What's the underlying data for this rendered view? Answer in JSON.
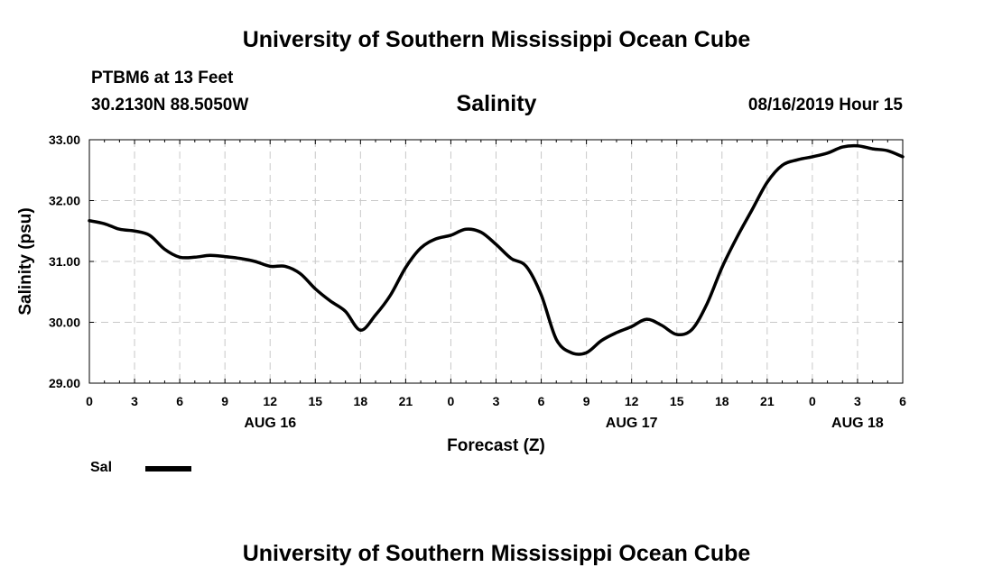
{
  "header": {
    "title": "University of Southern Mississippi Ocean Cube",
    "station": "PTBM6 at 13 Feet",
    "coords": "30.2130N 88.5050W",
    "timestamp": "08/16/2019 Hour 15"
  },
  "footer": {
    "title": "University of Southern Mississippi Ocean Cube"
  },
  "chart_data": {
    "type": "line",
    "title": "Salinity",
    "xlabel": "Forecast (Z)",
    "ylabel": "Salinity (psu)",
    "ylim": [
      29.0,
      33.0
    ],
    "xlim": [
      0,
      54
    ],
    "x_units": "hours from 2019-08-16 00Z",
    "y_ticks": [
      "29.00",
      "30.00",
      "31.00",
      "32.00",
      "33.00"
    ],
    "x_ticks": [
      {
        "x": 0,
        "label": "0"
      },
      {
        "x": 3,
        "label": "3"
      },
      {
        "x": 6,
        "label": "6"
      },
      {
        "x": 9,
        "label": "9"
      },
      {
        "x": 12,
        "label": "12"
      },
      {
        "x": 15,
        "label": "15"
      },
      {
        "x": 18,
        "label": "18"
      },
      {
        "x": 21,
        "label": "21"
      },
      {
        "x": 24,
        "label": "0"
      },
      {
        "x": 27,
        "label": "3"
      },
      {
        "x": 30,
        "label": "6"
      },
      {
        "x": 33,
        "label": "9"
      },
      {
        "x": 36,
        "label": "12"
      },
      {
        "x": 39,
        "label": "15"
      },
      {
        "x": 42,
        "label": "18"
      },
      {
        "x": 45,
        "label": "21"
      },
      {
        "x": 48,
        "label": "0"
      },
      {
        "x": 51,
        "label": "3"
      },
      {
        "x": 54,
        "label": "6"
      }
    ],
    "date_labels": [
      {
        "x": 12,
        "label": "AUG 16"
      },
      {
        "x": 36,
        "label": "AUG 17"
      },
      {
        "x": 51,
        "label": "AUG 18"
      }
    ],
    "grid": true,
    "legend": {
      "position": "bottom-left",
      "entries": [
        {
          "name": "Sal",
          "color": "#000000"
        }
      ]
    },
    "series": [
      {
        "name": "Sal",
        "color": "#000000",
        "x": [
          0,
          1,
          2,
          3,
          4,
          5,
          6,
          7,
          8,
          9,
          10,
          11,
          12,
          13,
          14,
          15,
          16,
          17,
          18,
          19,
          20,
          21,
          22,
          23,
          24,
          25,
          26,
          27,
          28,
          29,
          30,
          31,
          32,
          33,
          34,
          35,
          36,
          37,
          38,
          39,
          40,
          41,
          42,
          43,
          44,
          45,
          46,
          47,
          48,
          49,
          50,
          51,
          52,
          53,
          54
        ],
        "values": [
          31.67,
          31.62,
          31.53,
          31.5,
          31.43,
          31.2,
          31.07,
          31.07,
          31.1,
          31.08,
          31.05,
          31.0,
          30.92,
          30.92,
          30.8,
          30.55,
          30.35,
          30.18,
          29.87,
          30.12,
          30.45,
          30.9,
          31.22,
          31.37,
          31.43,
          31.53,
          31.48,
          31.28,
          31.05,
          30.92,
          30.45,
          29.72,
          29.5,
          29.5,
          29.7,
          29.83,
          29.93,
          30.05,
          29.95,
          29.8,
          29.88,
          30.3,
          30.9,
          31.4,
          31.85,
          32.3,
          32.58,
          32.67,
          32.72,
          32.78,
          32.88,
          32.9,
          32.85,
          32.82,
          32.72
        ]
      }
    ]
  }
}
